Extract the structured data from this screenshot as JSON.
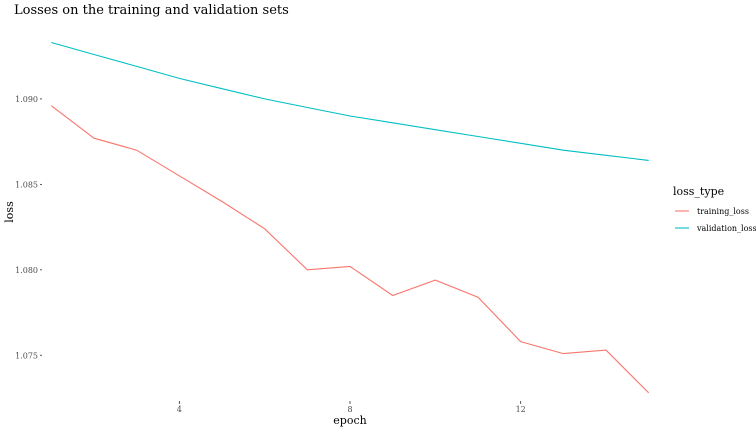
{
  "chart_data": {
    "type": "line",
    "title": "Losses on the training and validation sets",
    "xlabel": "epoch",
    "ylabel": "loss",
    "x": [
      1,
      2,
      3,
      4,
      5,
      6,
      7,
      8,
      9,
      10,
      11,
      12,
      13,
      14,
      15
    ],
    "xlim": [
      0.5,
      15.5
    ],
    "ylim": [
      1.0725,
      1.0945
    ],
    "x_ticks": [
      4,
      8,
      12
    ],
    "y_ticks": [
      1.075,
      1.08,
      1.085,
      1.09
    ],
    "x_tick_labels": [
      "4",
      "8",
      "12"
    ],
    "y_tick_labels": [
      "1.075",
      "1.080",
      "1.085",
      "1.090"
    ],
    "grid": false,
    "legend": {
      "title": "loss_type",
      "placement": "right"
    },
    "series": [
      {
        "name": "training_loss",
        "color": "#F8766D",
        "values": [
          1.0896,
          1.0877,
          1.087,
          1.0855,
          1.084,
          1.0824,
          1.08,
          1.0802,
          1.0785,
          1.0794,
          1.0784,
          1.0758,
          1.0751,
          1.0753,
          1.0728
        ]
      },
      {
        "name": "validation_loss",
        "color": "#00BFC4",
        "values": [
          1.0933,
          1.0926,
          1.0919,
          1.0912,
          1.0906,
          1.09,
          1.0895,
          1.089,
          1.0886,
          1.0882,
          1.0878,
          1.0874,
          1.087,
          1.0867,
          1.0864
        ]
      }
    ]
  }
}
